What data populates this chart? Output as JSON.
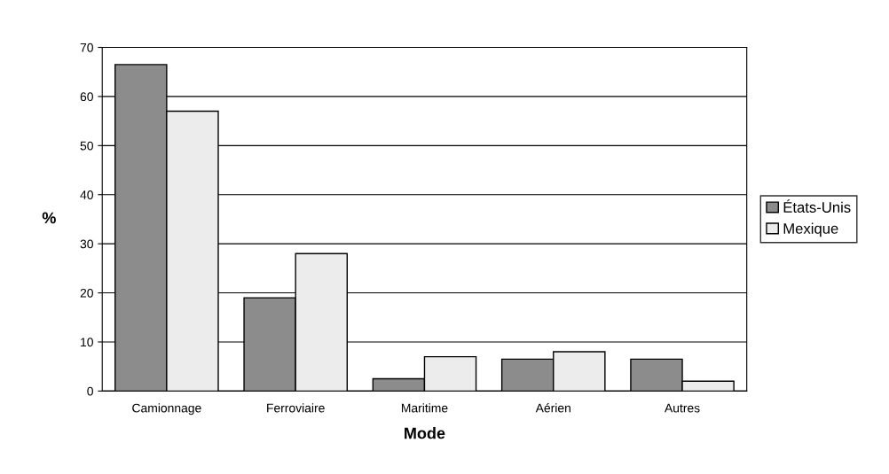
{
  "chart_data": {
    "type": "bar",
    "xlabel": "Mode",
    "ylabel": "%",
    "categories": [
      "Camionnage",
      "Ferroviaire",
      "Maritime",
      "Aérien",
      "Autres"
    ],
    "series": [
      {
        "name": "États-Unis",
        "color": "#8c8c8c",
        "values": [
          66.5,
          19,
          2.5,
          6.5,
          6.5
        ]
      },
      {
        "name": "Mexique",
        "color": "#ececec",
        "values": [
          57,
          28,
          7,
          8,
          2
        ]
      }
    ],
    "ylim": [
      0,
      70
    ],
    "yticks": [
      0,
      10,
      20,
      30,
      40,
      50,
      60,
      70
    ],
    "grid": "y",
    "legend": "right"
  }
}
